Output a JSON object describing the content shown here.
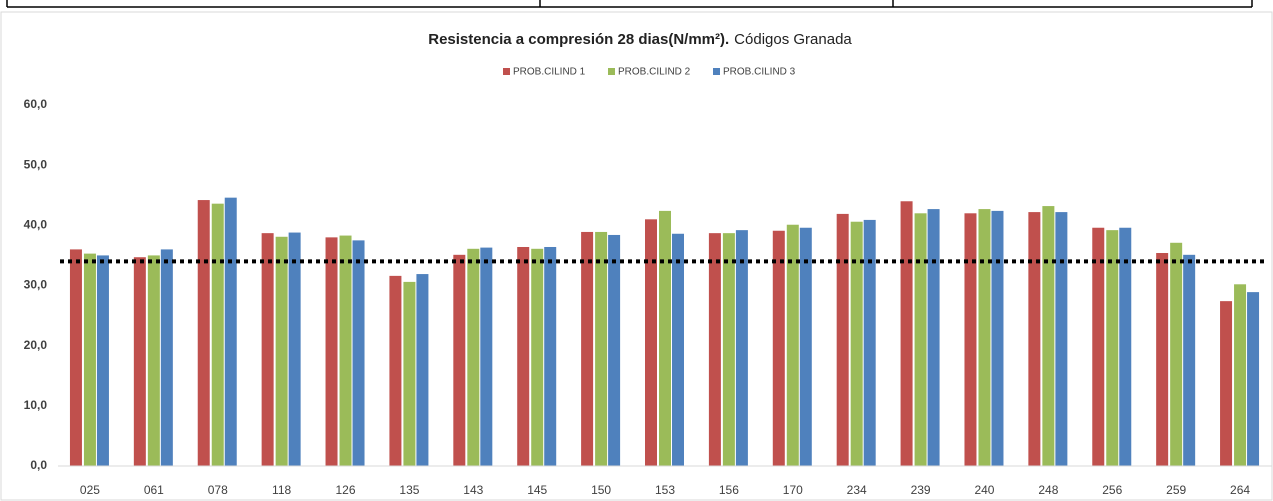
{
  "chart_data": {
    "type": "bar",
    "title": "Resistencia a compresión 28 dias(N/mm²).",
    "subtitle": "Códigos Granada",
    "categories": [
      "025",
      "061",
      "078",
      "118",
      "126",
      "135",
      "143",
      "145",
      "150",
      "153",
      "156",
      "170",
      "234",
      "239",
      "240",
      "248",
      "256",
      "259",
      "264"
    ],
    "series": [
      {
        "name": "PROB.CILIND 1",
        "color": "#c0504d",
        "values": [
          36.0,
          34.7,
          44.2,
          38.7,
          38.0,
          31.6,
          35.1,
          36.4,
          38.9,
          41.0,
          38.7,
          39.1,
          41.9,
          44.0,
          42.0,
          42.2,
          39.6,
          35.4,
          27.4
        ]
      },
      {
        "name": "PROB.CILIND 2",
        "color": "#9bbb59",
        "values": [
          35.3,
          35.0,
          43.6,
          38.1,
          38.3,
          30.6,
          36.1,
          36.1,
          38.9,
          42.4,
          38.7,
          40.1,
          40.6,
          42.0,
          42.7,
          43.2,
          39.2,
          37.1,
          30.2
        ]
      },
      {
        "name": "PROB.CILIND 3",
        "color": "#4f81bd",
        "values": [
          35.0,
          36.0,
          44.6,
          38.8,
          37.5,
          31.9,
          36.3,
          36.4,
          38.4,
          38.6,
          39.2,
          39.6,
          40.9,
          42.7,
          42.4,
          42.2,
          39.6,
          35.1,
          28.9
        ]
      }
    ],
    "ylim": [
      0,
      60
    ],
    "yticks": [
      {
        "value": 0,
        "label": "0,0"
      },
      {
        "value": 10,
        "label": "10,0"
      },
      {
        "value": 20,
        "label": "20,0"
      },
      {
        "value": 30,
        "label": "30,0"
      },
      {
        "value": 40,
        "label": "40,0"
      },
      {
        "value": 50,
        "label": "50,0"
      },
      {
        "value": 60,
        "label": "60,0"
      }
    ],
    "reference_line": 34,
    "grid": false,
    "legend": "top"
  }
}
